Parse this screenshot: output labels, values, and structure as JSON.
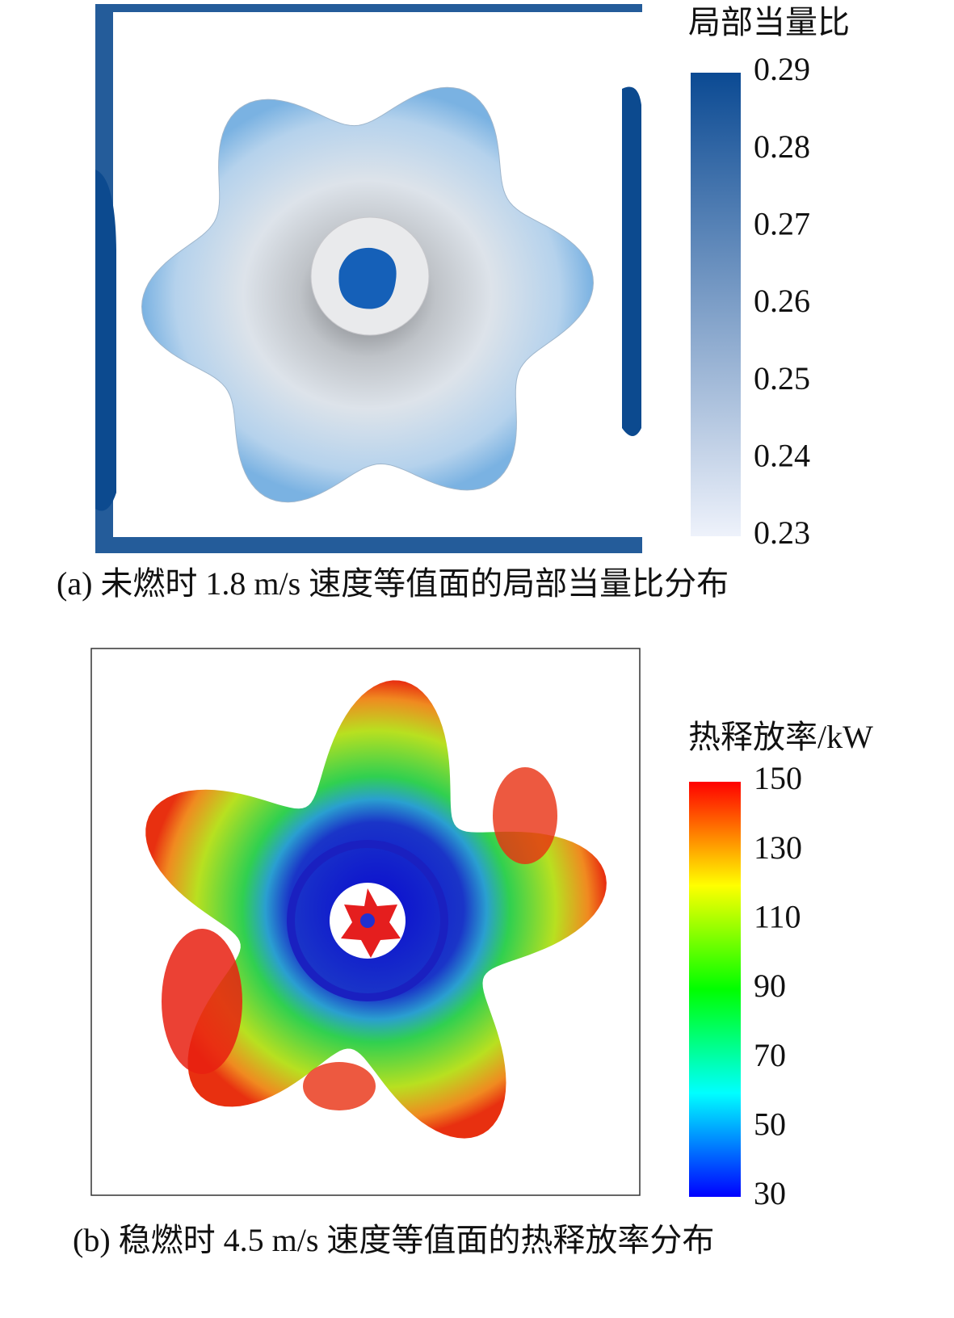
{
  "panels": [
    {
      "caption": "(a) 未燃时 1.8 m/s 速度等值面的局部当量比分布",
      "colorbar": {
        "title": "局部当量比",
        "lim": [
          0.23,
          0.29
        ],
        "ticks": [
          0.29,
          0.28,
          0.27,
          0.26,
          0.25,
          0.24,
          0.23
        ],
        "colors": [
          "#eef2fb",
          "#0b4a93"
        ]
      }
    },
    {
      "caption": "(b) 稳燃时 4.5 m/s 速度等值面的热释放率分布",
      "colorbar": {
        "title": "热释放率/kW",
        "lim": [
          30,
          150
        ],
        "ticks": [
          150,
          130,
          110,
          90,
          70,
          50,
          30
        ],
        "colors": [
          "#0000ff",
          "#00ffff",
          "#00ff00",
          "#ffff00",
          "#ff0000"
        ]
      }
    }
  ]
}
